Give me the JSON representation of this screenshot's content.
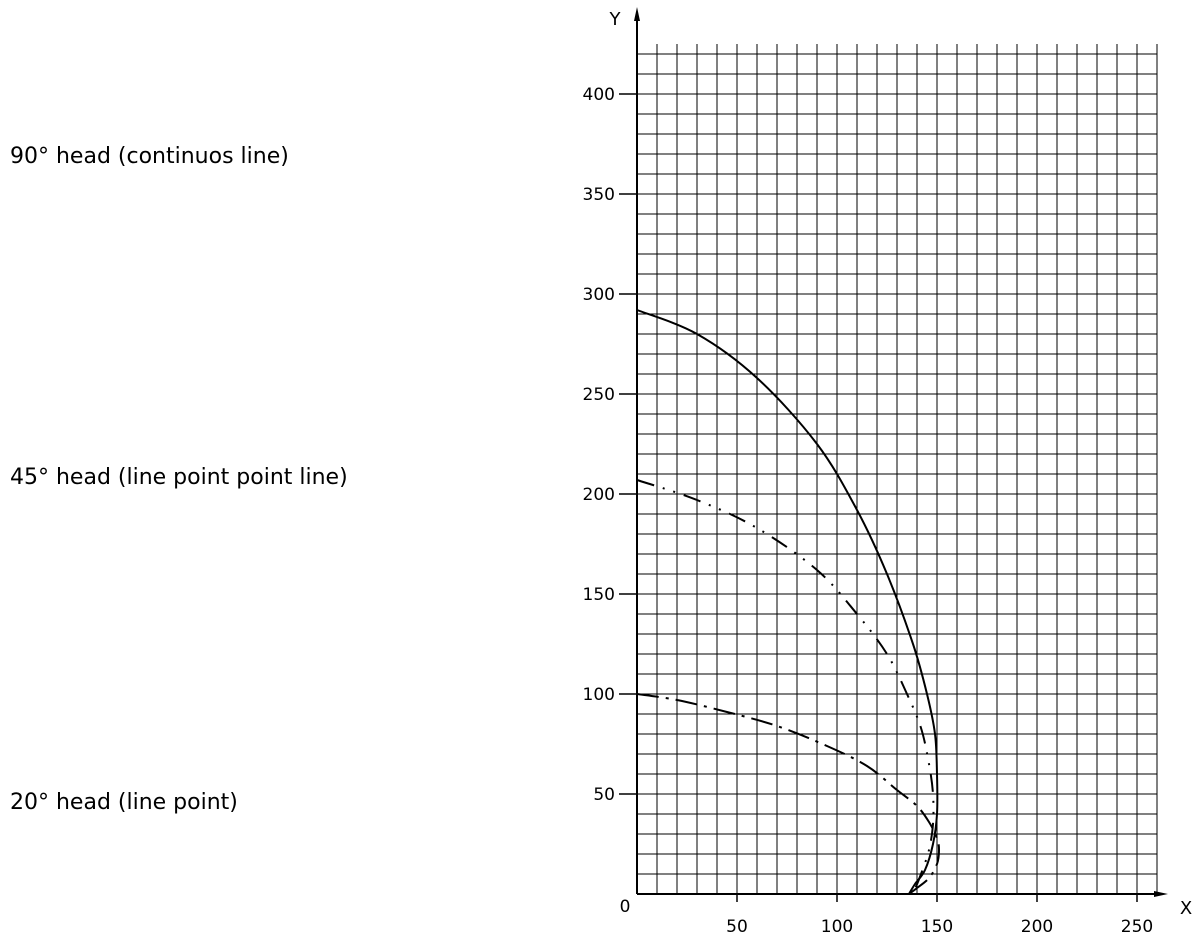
{
  "labels": {
    "head_90": "90° head (continuos line)",
    "head_45": "45° head (line point point line)",
    "head_20": "20° head (line point)"
  },
  "chart_data": {
    "type": "line",
    "title": "",
    "xlabel": "X",
    "ylabel": "Y",
    "origin_label": "0",
    "xlim": [
      0,
      260
    ],
    "ylim": [
      0,
      425
    ],
    "grid": true,
    "x_ticks": [
      50,
      100,
      150,
      200,
      250
    ],
    "y_ticks": [
      50,
      100,
      150,
      200,
      250,
      300,
      350,
      400
    ],
    "series": [
      {
        "style": "solid",
        "x": [
          0,
          30,
          60,
          90,
          110,
          125,
          138,
          145,
          149,
          150,
          150,
          148,
          144,
          139,
          136
        ],
        "y": [
          292,
          280,
          258,
          225,
          192,
          160,
          125,
          100,
          80,
          60,
          40,
          25,
          12,
          5,
          0
        ]
      },
      {
        "style": "dash-dot-dot",
        "x": [
          0,
          30,
          60,
          90,
          110,
          125,
          135,
          142,
          146,
          148,
          148,
          146,
          142,
          138
        ],
        "y": [
          207,
          197,
          183,
          162,
          140,
          120,
          100,
          83,
          65,
          50,
          35,
          22,
          10,
          0
        ]
      },
      {
        "style": "dash-dot",
        "x": [
          0,
          20,
          45,
          70,
          95,
          115,
          130,
          140,
          146,
          150,
          151,
          150,
          146,
          140,
          136
        ],
        "y": [
          100,
          97,
          91,
          84,
          74,
          64,
          52,
          44,
          36,
          28,
          22,
          15,
          8,
          3,
          0
        ]
      }
    ]
  }
}
